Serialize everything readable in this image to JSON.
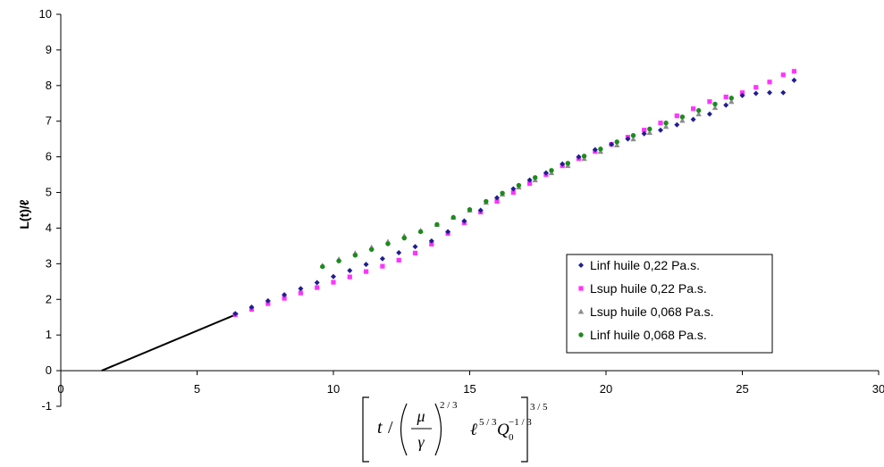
{
  "chart_data": {
    "type": "scatter",
    "title": "",
    "ylabel": "L(t)/ℓ",
    "xlabel": "[ t / (μ/γ)^{2/3} ℓ^{5/3} Q0^{-1/3} ]^{3/5}",
    "xlim": [
      0,
      30
    ],
    "ylim": [
      -1,
      10
    ],
    "x_ticks": [
      "0",
      "5",
      "10",
      "15",
      "20",
      "25",
      "30"
    ],
    "y_ticks": [
      "-1",
      "0",
      "1",
      "2",
      "3",
      "4",
      "5",
      "6",
      "7",
      "8",
      "9",
      "10"
    ],
    "grid": false,
    "legend_position": "right",
    "fit_line": {
      "x": [
        1.5,
        6.5
      ],
      "y": [
        0.0,
        1.6
      ],
      "color": "#000000"
    },
    "series": [
      {
        "name": "Linf huile 0,22 Pa.s.",
        "marker": "diamond",
        "color": "#1f1f8f",
        "x": [
          6.4,
          7.0,
          7.6,
          8.2,
          8.8,
          9.4,
          10.0,
          10.6,
          11.2,
          11.8,
          12.4,
          13.0,
          13.6,
          14.2,
          14.8,
          15.4,
          16.0,
          16.6,
          17.2,
          17.8,
          18.4,
          19.0,
          19.6,
          20.2,
          20.8,
          21.4,
          22.0,
          22.6,
          23.2,
          23.8,
          24.4,
          25.0,
          25.5,
          26.0,
          26.5,
          26.9
        ],
        "y": [
          1.6,
          1.78,
          1.96,
          2.13,
          2.3,
          2.47,
          2.64,
          2.81,
          2.98,
          3.14,
          3.31,
          3.48,
          3.64,
          3.9,
          4.2,
          4.5,
          4.85,
          5.1,
          5.35,
          5.55,
          5.8,
          6.0,
          6.2,
          6.35,
          6.5,
          6.65,
          6.75,
          6.9,
          7.05,
          7.2,
          7.45,
          7.72,
          7.78,
          7.8,
          7.8,
          8.15
        ]
      },
      {
        "name": "Lsup huile 0,22 Pa.s.",
        "marker": "square",
        "color": "#ff33ff",
        "x": [
          6.4,
          7.0,
          7.6,
          8.2,
          8.8,
          9.4,
          10.0,
          10.6,
          11.2,
          11.8,
          12.4,
          13.0,
          13.6,
          14.2,
          14.8,
          15.4,
          16.0,
          16.6,
          17.2,
          17.8,
          18.4,
          19.0,
          19.6,
          20.2,
          20.8,
          21.4,
          22.0,
          22.6,
          23.2,
          23.8,
          24.4,
          25.0,
          25.5,
          26.0,
          26.5,
          26.9
        ],
        "y": [
          1.57,
          1.72,
          1.88,
          2.03,
          2.18,
          2.33,
          2.48,
          2.63,
          2.78,
          2.93,
          3.1,
          3.3,
          3.55,
          3.85,
          4.15,
          4.45,
          4.75,
          5.0,
          5.25,
          5.5,
          5.75,
          5.95,
          6.15,
          6.35,
          6.55,
          6.75,
          6.95,
          7.15,
          7.35,
          7.55,
          7.68,
          7.8,
          7.95,
          8.1,
          8.3,
          8.4
        ]
      },
      {
        "name": "Lsup huile 0,068 Pa.s.",
        "marker": "triangle",
        "color": "#8c8c8c",
        "x": [
          9.6,
          10.2,
          10.8,
          11.4,
          12.0,
          12.6,
          13.2,
          13.8,
          14.4,
          15.0,
          15.6,
          16.2,
          16.8,
          17.4,
          18.0,
          18.6,
          19.2,
          19.8,
          20.4,
          21.0,
          21.6,
          22.2,
          22.8,
          23.4,
          24.0,
          24.6
        ],
        "y": [
          2.95,
          3.13,
          3.3,
          3.46,
          3.62,
          3.78,
          3.93,
          4.1,
          4.3,
          4.5,
          4.72,
          4.95,
          5.15,
          5.35,
          5.55,
          5.75,
          5.95,
          6.15,
          6.33,
          6.5,
          6.68,
          6.85,
          7.02,
          7.2,
          7.38,
          7.55
        ]
      },
      {
        "name": "Linf huile 0,068 Pa.s.",
        "marker": "circle",
        "color": "#1e8a1e",
        "x": [
          9.6,
          10.2,
          10.8,
          11.4,
          12.0,
          12.6,
          13.2,
          13.8,
          14.4,
          15.0,
          15.6,
          16.2,
          16.8,
          17.4,
          18.0,
          18.6,
          19.2,
          19.8,
          20.4,
          21.0,
          21.6,
          22.2,
          22.8,
          23.4,
          24.0,
          24.6
        ],
        "y": [
          2.92,
          3.08,
          3.24,
          3.4,
          3.56,
          3.72,
          3.9,
          4.1,
          4.3,
          4.52,
          4.75,
          4.98,
          5.2,
          5.42,
          5.62,
          5.82,
          6.02,
          6.22,
          6.42,
          6.6,
          6.78,
          6.95,
          7.12,
          7.3,
          7.48,
          7.65
        ]
      }
    ]
  },
  "xlabel_parts": {
    "t": "t",
    "slash": "/",
    "mu": "μ",
    "gamma": "γ",
    "exp_inner": "2 / 3",
    "ell": "ℓ",
    "ell_exp": "5 / 3",
    "Q": "Q",
    "Q_sub": "0",
    "Q_exp": "−1 / 3",
    "exp_outer": "3 / 5"
  }
}
